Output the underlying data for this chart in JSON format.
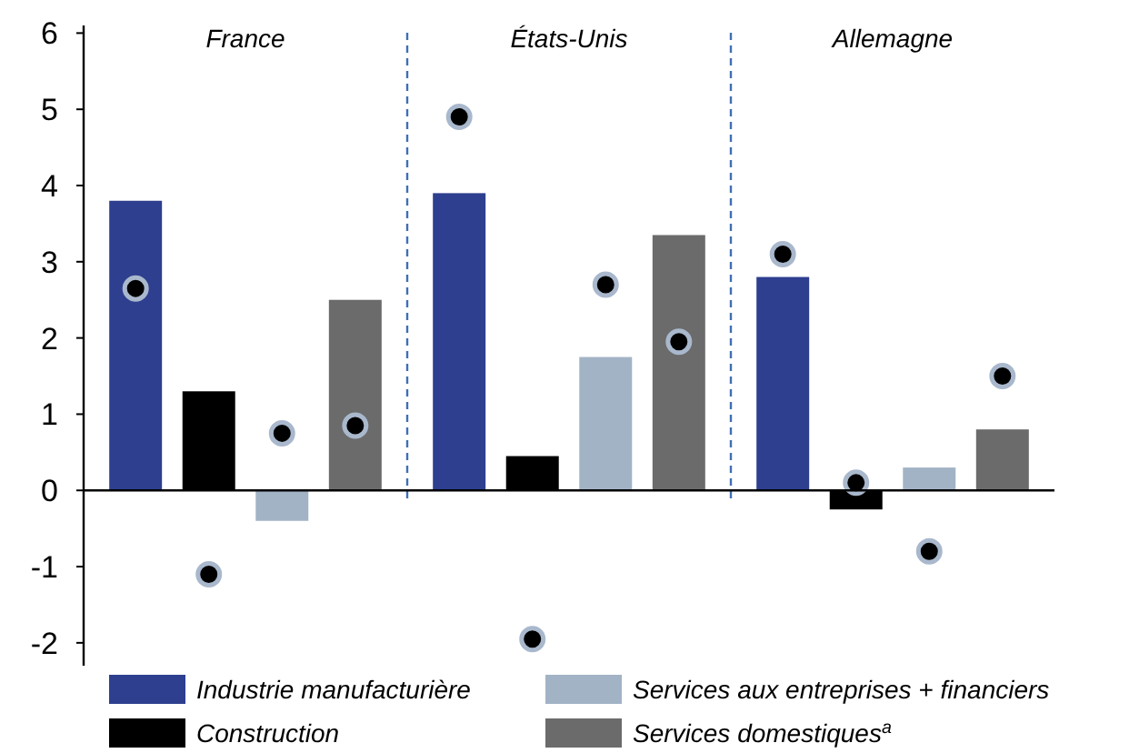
{
  "chart_data": {
    "type": "bar",
    "categories": [
      "France",
      "États-Unis",
      "Allemagne"
    ],
    "series": [
      {
        "name": "Industrie manufacturière",
        "color": "#2e3f8f",
        "values": [
          3.8,
          3.9,
          2.8
        ]
      },
      {
        "name": "Construction",
        "color": "#000000",
        "values": [
          1.3,
          0.45,
          -0.25
        ]
      },
      {
        "name": "Services aux entreprises + financiers",
        "color": "#a3b3c6",
        "values": [
          -0.4,
          1.75,
          0.3
        ]
      },
      {
        "name": "Services domestiques$^{a}$",
        "color": "#6b6b6b",
        "values": [
          2.5,
          3.35,
          0.8
        ]
      },
      {
        "type": "scatter",
        "color": "#000000",
        "values": [
          2.65,
          4.9,
          3.1
        ]
      },
      {
        "type": "scatter",
        "color": "#000000",
        "values": [
          -1.1,
          -1.95,
          0.1
        ]
      },
      {
        "type": "scatter",
        "color": "#000000",
        "values": [
          0.75,
          2.7,
          -0.8
        ]
      },
      {
        "type": "scatter",
        "color": "#000000",
        "values": [
          0.85,
          1.95,
          1.5
        ]
      }
    ],
    "ylim": [
      -2.3,
      6.1
    ],
    "yticks": [
      -2,
      -1,
      0,
      1,
      2,
      3,
      4,
      5,
      6
    ],
    "grid": false,
    "legend": "bottom",
    "marker": "circle"
  }
}
